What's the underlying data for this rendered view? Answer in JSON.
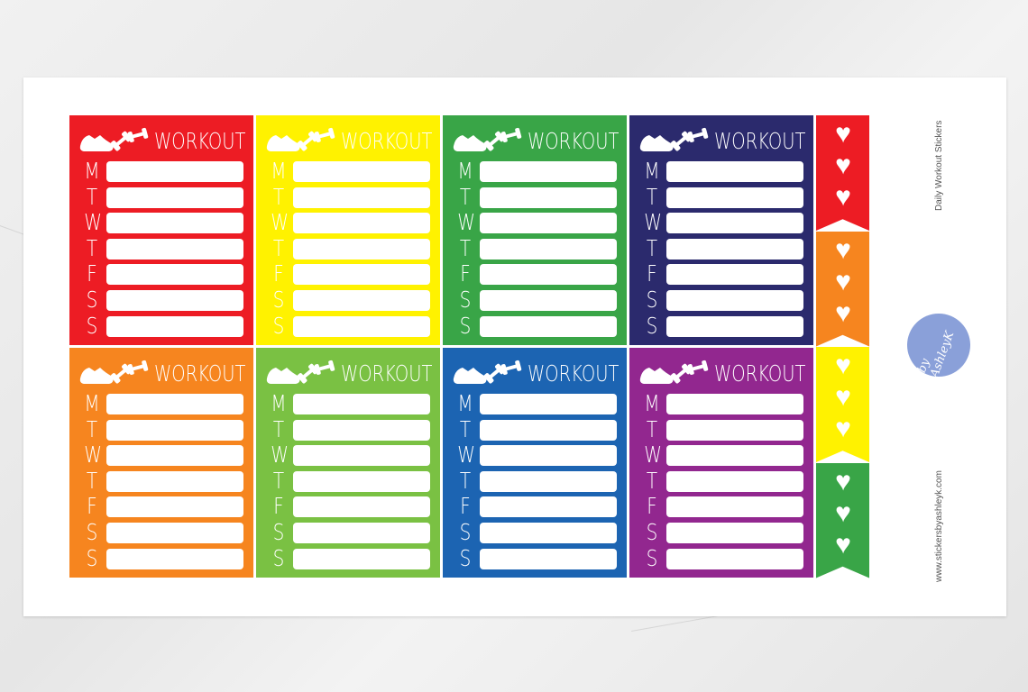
{
  "sheet": {
    "product_name": "Daily Workout Stickers",
    "website": "www.stickersbyashleyk.com",
    "logo_text": "by AshleyK"
  },
  "sticker_title": "WORKOUT",
  "days": [
    "M",
    "T",
    "W",
    "T",
    "F",
    "S",
    "S"
  ],
  "stickers": [
    {
      "color": "#ed1c24"
    },
    {
      "color": "#fff200"
    },
    {
      "color": "#39a547"
    },
    {
      "color": "#2b2a6d"
    },
    {
      "color": "#f6851f"
    },
    {
      "color": "#7ac143"
    },
    {
      "color": "#1c64b2"
    },
    {
      "color": "#92278f"
    }
  ],
  "flags": [
    {
      "color": "#ed1c24",
      "hearts": 3
    },
    {
      "color": "#f6851f",
      "hearts": 3
    },
    {
      "color": "#fff200",
      "hearts": 3
    },
    {
      "color": "#39a547",
      "hearts": 3
    }
  ],
  "icons": {
    "header": [
      "sneaker-icon",
      "dumbbell-icon"
    ],
    "flag": "heart-icon"
  }
}
